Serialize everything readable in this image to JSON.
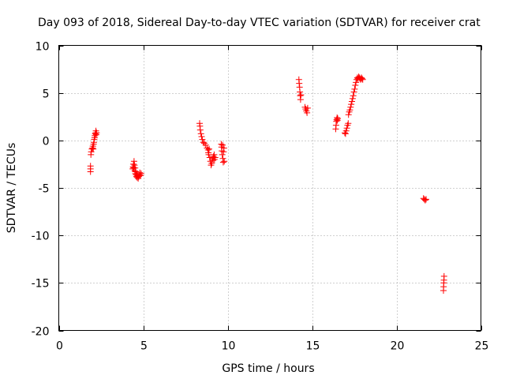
{
  "chart_data": {
    "type": "scatter",
    "title": "Day 093 of 2018, Sidereal Day-to-day VTEC variation (SDTVAR) for receiver crat",
    "xlabel": "GPS time / hours",
    "ylabel": "SDTVAR / TECUs",
    "xlim": [
      0,
      25
    ],
    "ylim": [
      -20,
      10
    ],
    "xticks": [
      0,
      5,
      10,
      15,
      20,
      25
    ],
    "xtick_labels": [
      "0",
      "5",
      "10",
      "15",
      "20",
      "25"
    ],
    "yticks": [
      -20,
      -15,
      -10,
      -5,
      0,
      5,
      10
    ],
    "ytick_labels": [
      "-20",
      "-15",
      "-10",
      "-5",
      "0",
      "5",
      "10"
    ],
    "grid": true,
    "marker": "plus",
    "series": [
      {
        "name": "SDTVAR",
        "color": "#ff0000",
        "x": [
          1.88,
          1.88,
          1.88,
          1.9,
          1.92,
          1.96,
          2.0,
          2.02,
          2.04,
          2.06,
          2.08,
          2.1,
          2.12,
          2.14,
          2.16,
          2.18,
          2.2,
          2.22,
          2.24,
          4.38,
          4.4,
          4.42,
          4.44,
          4.46,
          4.48,
          4.5,
          4.52,
          4.54,
          4.56,
          4.58,
          4.6,
          4.62,
          4.64,
          4.66,
          4.7,
          4.74,
          4.78,
          4.8,
          4.84,
          4.88,
          8.34,
          8.36,
          8.38,
          8.42,
          8.46,
          8.5,
          8.56,
          8.62,
          8.7,
          8.78,
          8.84,
          8.86,
          8.88,
          8.9,
          8.94,
          8.98,
          9.02,
          9.06,
          9.1,
          9.14,
          9.16,
          9.2,
          9.22,
          9.26,
          9.62,
          9.64,
          9.66,
          9.68,
          9.7,
          9.72,
          9.74,
          9.76,
          9.78,
          9.8,
          14.22,
          14.24,
          14.26,
          14.28,
          14.3,
          14.32,
          14.34,
          14.58,
          14.62,
          14.66,
          14.7,
          14.74,
          16.4,
          16.42,
          16.44,
          16.46,
          16.48,
          16.5,
          16.52,
          16.94,
          16.98,
          17.02,
          17.06,
          17.1,
          17.14,
          17.16,
          17.2,
          17.24,
          17.28,
          17.32,
          17.36,
          17.4,
          17.44,
          17.48,
          17.52,
          17.56,
          17.6,
          17.64,
          17.68,
          17.72,
          17.76,
          17.8,
          17.84,
          17.88,
          17.92,
          17.96,
          18.0,
          21.6,
          21.65,
          21.7,
          21.75,
          22.78,
          22.79,
          22.8,
          22.81,
          22.82
        ],
        "y": [
          -3.3,
          -3.0,
          -2.7,
          -1.5,
          -1.2,
          -0.9,
          -0.8,
          -0.6,
          -0.9,
          -0.4,
          -0.2,
          0.1,
          0.3,
          0.5,
          0.7,
          0.8,
          1.0,
          0.6,
          0.8,
          -3.0,
          -2.8,
          -2.5,
          -2.9,
          -2.2,
          -2.6,
          -3.2,
          -2.9,
          -3.5,
          -3.3,
          -3.6,
          -3.8,
          -3.6,
          -3.9,
          -3.7,
          -4.0,
          -3.8,
          -3.6,
          -3.4,
          -3.7,
          -3.5,
          1.8,
          1.5,
          1.1,
          0.7,
          0.4,
          0.1,
          -0.2,
          -0.3,
          -0.5,
          -0.8,
          -1.0,
          -1.3,
          -1.5,
          -0.9,
          -1.8,
          -2.2,
          -2.6,
          -2.4,
          -1.9,
          -2.1,
          -1.7,
          -1.5,
          -2.0,
          -1.8,
          -0.4,
          -0.7,
          -1.1,
          -1.5,
          -0.5,
          -1.9,
          -2.3,
          -1.2,
          -0.8,
          -2.2,
          6.4,
          6.0,
          5.6,
          5.1,
          4.7,
          4.3,
          4.8,
          3.5,
          3.3,
          3.1,
          2.9,
          3.4,
          1.2,
          1.6,
          2.0,
          2.2,
          2.4,
          2.1,
          2.3,
          0.8,
          0.7,
          1.0,
          1.3,
          1.6,
          1.8,
          2.7,
          3.0,
          3.2,
          3.5,
          3.8,
          4.1,
          4.4,
          4.7,
          5.1,
          5.4,
          5.8,
          6.1,
          6.4,
          6.6,
          6.5,
          6.7,
          6.6,
          6.5,
          6.4,
          6.6,
          6.5,
          6.4,
          -6.1,
          -6.2,
          -6.3,
          -6.2,
          -15.8,
          -15.4,
          -15.0,
          -14.7,
          -14.3
        ]
      }
    ]
  }
}
